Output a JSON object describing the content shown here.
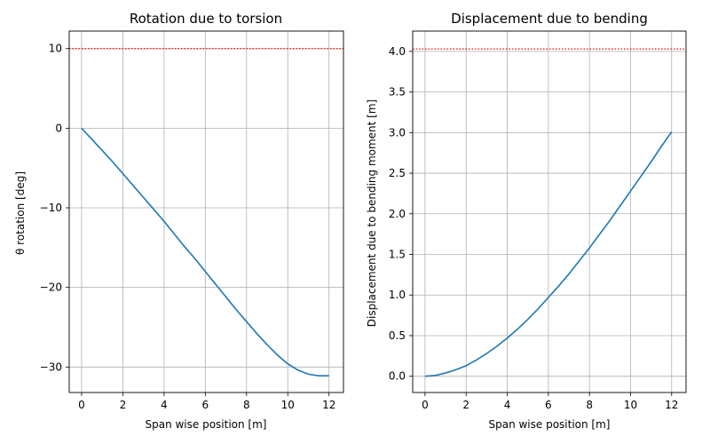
{
  "chart_data": [
    {
      "type": "line",
      "title": "Rotation due to torsion",
      "xlabel": "Span wise position [m]",
      "ylabel": "θ rotation [deg]",
      "xlim": [
        -0.6,
        12.7
      ],
      "ylim": [
        -33.2,
        12.2
      ],
      "xticks": [
        0,
        2,
        4,
        6,
        8,
        10,
        12
      ],
      "yticks": [
        -30,
        -20,
        -10,
        0,
        10
      ],
      "ytick_labels": [
        "−30",
        "−20",
        "−10",
        "0",
        "10"
      ],
      "grid": true,
      "series": [
        {
          "color": "#1f77b4",
          "x": [
            0,
            0.5,
            1,
            1.5,
            2,
            2.5,
            3,
            3.5,
            4,
            4.5,
            5,
            5.5,
            6,
            6.5,
            7,
            7.5,
            8,
            8.5,
            9,
            9.5,
            10,
            10.5,
            11,
            11.5,
            12
          ],
          "y": [
            0,
            -1.4,
            -2.8,
            -4.2,
            -5.7,
            -7.2,
            -8.7,
            -10.2,
            -11.7,
            -13.3,
            -14.9,
            -16.4,
            -18.0,
            -19.6,
            -21.2,
            -22.8,
            -24.3,
            -25.8,
            -27.2,
            -28.5,
            -29.6,
            -30.4,
            -30.9,
            -31.1,
            -31.1
          ]
        }
      ],
      "hlines": [
        {
          "y": 10,
          "color": "#ff0000",
          "style": "dotted"
        }
      ]
    },
    {
      "type": "line",
      "title": "Displacement due to bending",
      "xlabel": "Span wise position [m]",
      "ylabel": "Displacement due to bending moment [m]",
      "xlim": [
        -0.6,
        12.7
      ],
      "ylim": [
        -0.2,
        4.25
      ],
      "xticks": [
        0,
        2,
        4,
        6,
        8,
        10,
        12
      ],
      "yticks": [
        0.0,
        0.5,
        1.0,
        1.5,
        2.0,
        2.5,
        3.0,
        3.5,
        4.0
      ],
      "ytick_labels": [
        "0.0",
        "0.5",
        "1.0",
        "1.5",
        "2.0",
        "2.5",
        "3.0",
        "3.5",
        "4.0"
      ],
      "grid": true,
      "series": [
        {
          "color": "#1f77b4",
          "x": [
            0,
            0.5,
            1,
            1.5,
            2,
            2.5,
            3,
            3.5,
            4,
            4.5,
            5,
            5.5,
            6,
            6.5,
            7,
            7.5,
            8,
            8.5,
            9,
            9.5,
            10,
            10.5,
            11,
            11.5,
            12
          ],
          "y": [
            0,
            0.01,
            0.04,
            0.08,
            0.13,
            0.2,
            0.28,
            0.37,
            0.47,
            0.58,
            0.7,
            0.83,
            0.97,
            1.11,
            1.26,
            1.42,
            1.58,
            1.75,
            1.92,
            2.1,
            2.28,
            2.46,
            2.64,
            2.83,
            3.01
          ]
        }
      ],
      "hlines": [
        {
          "y": 4.03,
          "color": "#ff0000",
          "style": "dotted"
        }
      ]
    }
  ]
}
